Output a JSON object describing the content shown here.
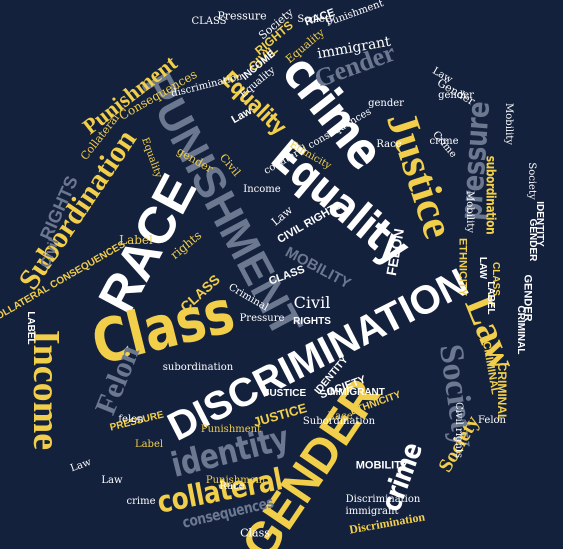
{
  "colors": {
    "background": "#14213d",
    "white": "#ffffff",
    "gold": "#f2cf4a",
    "gray": "#a9b0bb",
    "slate": "#6c7890"
  },
  "words": [
    {
      "text": "DISCRIMINATION",
      "color": "white"
    },
    {
      "text": "RACE",
      "color": "white"
    },
    {
      "text": "PUNISHMENT",
      "color": "slate"
    },
    {
      "text": "Class",
      "color": "gold"
    },
    {
      "text": "crime",
      "color": "white"
    },
    {
      "text": "Justice",
      "color": "gold"
    },
    {
      "text": "Equality",
      "color": "white"
    },
    {
      "text": "GENDER",
      "color": "gold"
    },
    {
      "text": "Society",
      "color": "slate"
    },
    {
      "text": "Law",
      "color": "gold"
    },
    {
      "text": "Income",
      "color": "gold"
    },
    {
      "text": "identity",
      "color": "slate"
    },
    {
      "text": "collateral",
      "color": "gold"
    },
    {
      "text": "Subordination",
      "color": "gold"
    },
    {
      "text": "pressure",
      "color": "slate"
    },
    {
      "text": "Gender",
      "color": "slate"
    },
    {
      "text": "Punishment",
      "color": "gold"
    },
    {
      "text": "Felon",
      "color": "slate"
    },
    {
      "text": "crime",
      "color": "white"
    },
    {
      "text": "Equality",
      "color": "gold"
    },
    {
      "text": "RIGHTS",
      "color": "slate"
    },
    {
      "text": "Civil",
      "color": "slate"
    },
    {
      "text": "consequences",
      "color": "slate"
    },
    {
      "text": "Discrimination",
      "color": "gold"
    },
    {
      "text": "MOBILITY",
      "color": "slate"
    },
    {
      "text": "FELON",
      "color": "white"
    },
    {
      "text": "Society",
      "color": "gold"
    },
    {
      "text": "CRIMINAL",
      "color": "gold"
    },
    {
      "text": "JUSTICE",
      "color": "gold"
    },
    {
      "text": "Race",
      "color": "gold"
    },
    {
      "text": "Collateral",
      "color": "gold"
    },
    {
      "text": "Consequences",
      "color": "gold"
    },
    {
      "text": "immigrant",
      "color": "white"
    },
    {
      "text": "discrimination",
      "color": "white"
    },
    {
      "text": "subordination",
      "color": "gold"
    },
    {
      "text": "Class",
      "color": "white"
    },
    {
      "text": "CLASS",
      "color": "gold"
    },
    {
      "text": "PRESSURE",
      "color": "gold"
    },
    {
      "text": "Civil",
      "color": "white"
    },
    {
      "text": "RIGHTS",
      "color": "white"
    },
    {
      "text": "CIVIL",
      "color": "gold"
    },
    {
      "text": "RIGHTS",
      "color": "gold"
    },
    {
      "text": "Equality",
      "color": "gold"
    },
    {
      "text": "Society",
      "color": "white"
    },
    {
      "text": "RACE",
      "color": "white"
    },
    {
      "text": "Punishment",
      "color": "white"
    },
    {
      "text": "Gender",
      "color": "white"
    },
    {
      "text": "Law",
      "color": "white"
    },
    {
      "text": "gender",
      "color": "white"
    },
    {
      "text": "INCOME",
      "color": "white"
    },
    {
      "text": "Equality",
      "color": "white"
    },
    {
      "text": "collateral consequences",
      "color": "white"
    },
    {
      "text": "Law",
      "color": "white"
    },
    {
      "text": "gender",
      "color": "gold"
    },
    {
      "text": "Civil",
      "color": "gold"
    },
    {
      "text": "Ethnicity",
      "color": "gold"
    },
    {
      "text": "Race",
      "color": "white"
    },
    {
      "text": "Crime",
      "color": "white"
    },
    {
      "text": "Label",
      "color": "gold"
    },
    {
      "text": "Mobility",
      "color": "white"
    },
    {
      "text": "subordination",
      "color": "white"
    },
    {
      "text": "LABEL",
      "color": "white"
    },
    {
      "text": "COLLATERAL CONSEQUENCES",
      "color": "gold"
    },
    {
      "text": "Equality",
      "color": "gold"
    },
    {
      "text": "rights",
      "color": "gold"
    },
    {
      "text": "Law",
      "color": "white"
    },
    {
      "text": "Punishment",
      "color": "gold"
    },
    {
      "text": "Pressure",
      "color": "white"
    },
    {
      "text": "Criminal",
      "color": "white"
    },
    {
      "text": "CLASS",
      "color": "white"
    },
    {
      "text": "ETHNICITY",
      "color": "gold"
    },
    {
      "text": "IDENTITY",
      "color": "white"
    },
    {
      "text": "GENDER",
      "color": "white"
    },
    {
      "text": "CRIMINAL",
      "color": "gold"
    },
    {
      "text": "LAW",
      "color": "white"
    },
    {
      "text": "CLASS",
      "color": "gold"
    },
    {
      "text": "LABEL",
      "color": "white"
    },
    {
      "text": "SOCIETY",
      "color": "white"
    },
    {
      "text": "JUSTICE",
      "color": "white"
    },
    {
      "text": "IMMIGRANT",
      "color": "white"
    },
    {
      "text": "ETHNICITY",
      "color": "gold"
    },
    {
      "text": "MOBILITY",
      "color": "white"
    },
    {
      "text": "Subordination",
      "color": "white"
    },
    {
      "text": "Punishment",
      "color": "gold"
    },
    {
      "text": "Race",
      "color": "white"
    },
    {
      "text": "Label",
      "color": "gold"
    },
    {
      "text": "Law",
      "color": "white"
    },
    {
      "text": "crime",
      "color": "white"
    },
    {
      "text": "felon",
      "color": "white"
    },
    {
      "text": "Discrimination",
      "color": "white"
    },
    {
      "text": "immigrant",
      "color": "white"
    },
    {
      "text": "Society",
      "color": "white"
    },
    {
      "text": "Society",
      "color": "white"
    },
    {
      "text": "CIVIL RIGHTS",
      "color": "white"
    },
    {
      "text": "Income",
      "color": "white"
    },
    {
      "text": "Felon",
      "color": "white"
    },
    {
      "text": "Civil rights",
      "color": "white"
    },
    {
      "text": "Law",
      "color": "white"
    },
    {
      "text": "CLASS",
      "color": "white"
    },
    {
      "text": "Pressure",
      "color": "white"
    },
    {
      "text": "CRIMINAL",
      "color": "white"
    },
    {
      "text": "gender",
      "color": "white"
    },
    {
      "text": "crime",
      "color": "white"
    },
    {
      "text": "Mobility",
      "color": "white"
    },
    {
      "text": "IDENTITY",
      "color": "white"
    },
    {
      "text": "GENDER",
      "color": "white"
    }
  ]
}
